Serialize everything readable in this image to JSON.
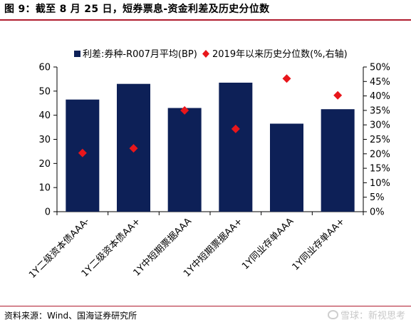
{
  "header": {
    "title": "图 9：截至 8 月 25 日，短券票息-资金利差及历史分位数"
  },
  "footer": {
    "source": "资料来源：Wind、国海证券研究所",
    "watermark": "雪球：新视思考"
  },
  "colors": {
    "bar": "#0d2057",
    "marker": "#e8161b",
    "rule": "#b01c2e",
    "watermark": "#c8c8c8"
  },
  "chart_data": {
    "type": "bar",
    "categories": [
      "1Y二级资本债AAA-",
      "1Y二级资本债AA+",
      "1Y中短期票据AAA",
      "1Y中短期票据AA+",
      "1Y同业存单AAA",
      "1Y同业存单AA+"
    ],
    "series": [
      {
        "name": "利差:券种-R007月平均(BP)",
        "type": "bar",
        "axis": "left",
        "values": [
          46.5,
          53,
          43,
          53.5,
          36.5,
          42.5
        ]
      },
      {
        "name": "2019年以来历史分位数(%,右轴)",
        "type": "scatter",
        "axis": "right",
        "values": [
          20.3,
          21.9,
          35.0,
          28.6,
          46.0,
          40.2
        ]
      }
    ],
    "y_left": {
      "min": 0,
      "max": 60,
      "ticks": [
        "0",
        "10",
        "20",
        "30",
        "40",
        "50",
        "60"
      ]
    },
    "y_right": {
      "min": 0,
      "max": 50,
      "ticks": [
        "0%",
        "5%",
        "10%",
        "15%",
        "20%",
        "25%",
        "30%",
        "35%",
        "40%",
        "45%",
        "50%"
      ]
    },
    "legend_position": "top",
    "grid": false
  }
}
